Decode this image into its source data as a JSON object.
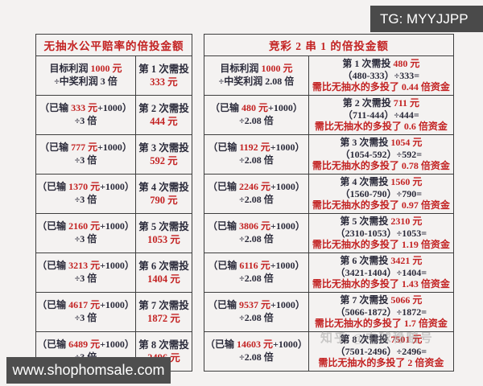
{
  "badges": {
    "tg_label": "TG: MYYJJPP",
    "site_label": "www.shophomsale.com"
  },
  "watermark": "知乎 @中球稳赔号",
  "colors": {
    "accent_red": "#c32222",
    "text_dark": "#2a2a3a",
    "badge_bg": "#4a4a4a"
  },
  "table": {
    "left_header": "无抽水公平赔率的倍投金额",
    "right_header": "竞彩 2 串 1 的倍投金额",
    "rows": [
      {
        "left_formula": [
          "目标利润 |1000 元|",
          "÷中奖利润 3 倍"
        ],
        "left_invest": [
          "第 1 次需投",
          "|333 元|"
        ],
        "right_formula": [
          "目标利润 |1000 元|",
          "÷中奖利润 2.08 倍"
        ],
        "right_result": [
          "第 1 次需投 |480 元|",
          "（480-333）÷333=",
          "|需比无抽水的多投了 0.44 倍资金|"
        ]
      },
      {
        "left_formula": [
          "（已输 |333 元|+1000）",
          "÷3 倍"
        ],
        "left_invest": [
          "第 2 次需投",
          "|444 元|"
        ],
        "right_formula": [
          "（已输 |480 元|+1000）",
          "÷2.08 倍"
        ],
        "right_result": [
          "第 2 次需投 |711 元|",
          "（711-444）÷444=",
          "|需比无抽水的多投了 0.6 倍资金|"
        ]
      },
      {
        "left_formula": [
          "（已输 |777 元|+1000）",
          "÷3 倍"
        ],
        "left_invest": [
          "第 3 次需投",
          "|592 元|"
        ],
        "right_formula": [
          "（已输 |1192 元|+1000）",
          "÷2.08 倍"
        ],
        "right_result": [
          "第 3 次需投 |1054 元|",
          "（1054-592）÷592=",
          "|需比无抽水的多投了 0.78 倍资金|"
        ]
      },
      {
        "left_formula": [
          "（已输 |1370 元|+1000）",
          "÷3 倍"
        ],
        "left_invest": [
          "第 4 次需投",
          "|790 元|"
        ],
        "right_formula": [
          "（已输 |2246 元|+1000）",
          "÷2.08 倍"
        ],
        "right_result": [
          "第 4 次需投 |1560 元|",
          "（1560-790）÷790=",
          "|需比无抽水的多投了 0.97 倍资金|"
        ]
      },
      {
        "left_formula": [
          "（已输 |2160 元|+1000）",
          "÷3 倍"
        ],
        "left_invest": [
          "第 5 次需投",
          "|1053 元|"
        ],
        "right_formula": [
          "（已输 |3806 元|+1000）",
          "÷2.08 倍"
        ],
        "right_result": [
          "第 5 次需投 |2310 元|",
          "（2310-1053）÷1053=",
          "|需比无抽水的多投了 1.19 倍资金|"
        ]
      },
      {
        "left_formula": [
          "（已输 |3213 元|+1000）",
          "÷3 倍"
        ],
        "left_invest": [
          "第 6 次需投",
          "|1404 元|"
        ],
        "right_formula": [
          "（已输 |6116 元|+1000）",
          "÷2.08 倍"
        ],
        "right_result": [
          "第 6 次需投 |3421 元|",
          "（3421-1404）÷1404=",
          "|需比无抽水的多投了 1.43 倍资金|"
        ]
      },
      {
        "left_formula": [
          "（已输 |4617 元|+1000）",
          "÷3 倍"
        ],
        "left_invest": [
          "第 7 次需投",
          "|1872 元|"
        ],
        "right_formula": [
          "（已输 |9537 元|+1000）",
          "÷2.08 倍"
        ],
        "right_result": [
          "第 7 次需投 |5066 元|",
          "（5066-1872）÷1872=",
          "|需比无抽水的多投了 1.7 倍资金|"
        ]
      },
      {
        "left_formula": [
          "（已输 |6489 元|+1000）",
          "÷3 倍"
        ],
        "left_invest": [
          "第 8 次需投",
          "|2496 元|"
        ],
        "right_formula": [
          "（已输 |14603 元|+1000）",
          "÷2.08 倍"
        ],
        "right_result": [
          "第 8 次需投 |7501 元|",
          "（7501-2496）÷2496=",
          "|需比无抽水的多投了 2 倍资金|"
        ]
      }
    ]
  }
}
